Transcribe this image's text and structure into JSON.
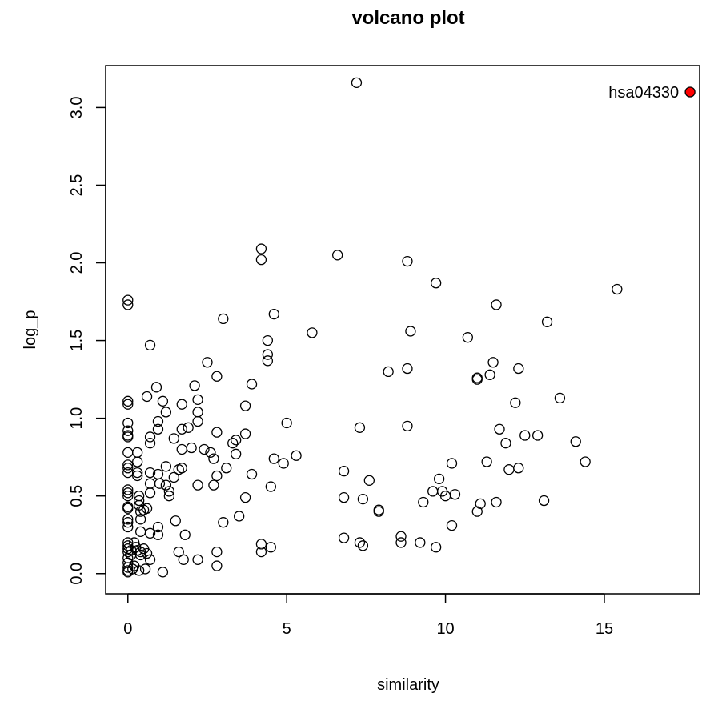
{
  "chart_data": {
    "type": "scatter",
    "title": "volcano plot",
    "xlabel": "similarity",
    "ylabel": "log_p",
    "xlim": [
      -0.7,
      18
    ],
    "ylim": [
      -0.13,
      3.27
    ],
    "xticks": [
      0,
      5,
      10,
      15
    ],
    "yticks": [
      0.0,
      0.5,
      1.0,
      1.5,
      2.0,
      2.5,
      3.0
    ],
    "x_tick_labels": [
      "0",
      "5",
      "10",
      "15"
    ],
    "y_tick_labels": [
      "0.0",
      "0.5",
      "1.0",
      "1.5",
      "2.0",
      "2.5",
      "3.0"
    ],
    "grid": false,
    "marker": "open-circle",
    "highlight": {
      "label": "hsa04330",
      "x": 17.7,
      "y": 3.1,
      "color": "#ff0000"
    },
    "points": [
      [
        0,
        1.76
      ],
      [
        0,
        1.73
      ],
      [
        0,
        1.11
      ],
      [
        0,
        1.09
      ],
      [
        0,
        0.97
      ],
      [
        0,
        0.92
      ],
      [
        0,
        0.89
      ],
      [
        0,
        0.88
      ],
      [
        0,
        0.78
      ],
      [
        0,
        0.7
      ],
      [
        0,
        0.68
      ],
      [
        0,
        0.65
      ],
      [
        0,
        0.54
      ],
      [
        0,
        0.52
      ],
      [
        0,
        0.5
      ],
      [
        0,
        0.43
      ],
      [
        0,
        0.42
      ],
      [
        0,
        0.35
      ],
      [
        0,
        0.33
      ],
      [
        0,
        0.3
      ],
      [
        0,
        0.2
      ],
      [
        0,
        0.18
      ],
      [
        0,
        0.16
      ],
      [
        0,
        0.14
      ],
      [
        0,
        0.1
      ],
      [
        0,
        0.07
      ],
      [
        0,
        0.04
      ],
      [
        0,
        0.02
      ],
      [
        0,
        0.01
      ],
      [
        0.1,
        0.15
      ],
      [
        0.1,
        0.12
      ],
      [
        0.15,
        0.03
      ],
      [
        0.2,
        0.2
      ],
      [
        0.2,
        0.05
      ],
      [
        0.25,
        0.17
      ],
      [
        0.3,
        0.78
      ],
      [
        0.3,
        0.72
      ],
      [
        0.3,
        0.65
      ],
      [
        0.3,
        0.63
      ],
      [
        0.3,
        0.15
      ],
      [
        0.35,
        0.5
      ],
      [
        0.35,
        0.47
      ],
      [
        0.35,
        0.44
      ],
      [
        0.4,
        0.4
      ],
      [
        0.4,
        0.35
      ],
      [
        0.4,
        0.27
      ],
      [
        0.4,
        0.14
      ],
      [
        0.4,
        0.12
      ],
      [
        0.35,
        0.02
      ],
      [
        0.5,
        0.41
      ],
      [
        0.5,
        0.16
      ],
      [
        0.55,
        0.03
      ],
      [
        0.6,
        0.42
      ],
      [
        0.6,
        0.13
      ],
      [
        0.6,
        1.14
      ],
      [
        0.7,
        1.47
      ],
      [
        0.7,
        0.88
      ],
      [
        0.7,
        0.84
      ],
      [
        0.7,
        0.65
      ],
      [
        0.7,
        0.58
      ],
      [
        0.7,
        0.52
      ],
      [
        0.7,
        0.26
      ],
      [
        0.7,
        0.09
      ],
      [
        0.9,
        1.2
      ],
      [
        0.95,
        0.98
      ],
      [
        0.95,
        0.93
      ],
      [
        0.95,
        0.64
      ],
      [
        0.95,
        0.3
      ],
      [
        0.95,
        0.25
      ],
      [
        1.0,
        0.58
      ],
      [
        1.1,
        1.11
      ],
      [
        1.1,
        0.01
      ],
      [
        1.2,
        1.04
      ],
      [
        1.2,
        0.69
      ],
      [
        1.2,
        0.57
      ],
      [
        1.3,
        0.53
      ],
      [
        1.3,
        0.5
      ],
      [
        1.45,
        0.87
      ],
      [
        1.45,
        0.62
      ],
      [
        1.5,
        0.34
      ],
      [
        1.6,
        0.67
      ],
      [
        1.6,
        0.14
      ],
      [
        1.7,
        1.09
      ],
      [
        1.7,
        0.93
      ],
      [
        1.7,
        0.8
      ],
      [
        1.7,
        0.68
      ],
      [
        1.75,
        0.09
      ],
      [
        1.8,
        0.25
      ],
      [
        1.9,
        0.94
      ],
      [
        2.0,
        0.81
      ],
      [
        2.1,
        1.21
      ],
      [
        2.2,
        1.12
      ],
      [
        2.2,
        1.04
      ],
      [
        2.2,
        0.98
      ],
      [
        2.2,
        0.57
      ],
      [
        2.2,
        0.09
      ],
      [
        2.4,
        0.8
      ],
      [
        2.5,
        1.36
      ],
      [
        2.6,
        0.78
      ],
      [
        2.7,
        0.74
      ],
      [
        2.7,
        0.57
      ],
      [
        2.8,
        1.27
      ],
      [
        2.8,
        0.91
      ],
      [
        2.8,
        0.63
      ],
      [
        2.8,
        0.14
      ],
      [
        2.8,
        0.05
      ],
      [
        3.0,
        1.64
      ],
      [
        3.0,
        0.33
      ],
      [
        3.1,
        0.68
      ],
      [
        3.3,
        0.84
      ],
      [
        3.4,
        0.86
      ],
      [
        3.4,
        0.77
      ],
      [
        3.5,
        0.37
      ],
      [
        3.7,
        1.08
      ],
      [
        3.7,
        0.9
      ],
      [
        3.7,
        0.49
      ],
      [
        3.9,
        1.22
      ],
      [
        3.9,
        0.64
      ],
      [
        4.2,
        2.09
      ],
      [
        4.2,
        2.02
      ],
      [
        4.2,
        0.19
      ],
      [
        4.2,
        0.14
      ],
      [
        4.4,
        1.5
      ],
      [
        4.4,
        1.41
      ],
      [
        4.4,
        1.37
      ],
      [
        4.5,
        0.56
      ],
      [
        4.5,
        0.17
      ],
      [
        4.6,
        1.67
      ],
      [
        4.6,
        0.74
      ],
      [
        4.9,
        0.71
      ],
      [
        5.0,
        0.97
      ],
      [
        5.3,
        0.76
      ],
      [
        5.8,
        1.55
      ],
      [
        6.6,
        2.05
      ],
      [
        6.8,
        0.66
      ],
      [
        6.8,
        0.49
      ],
      [
        6.8,
        0.23
      ],
      [
        7.2,
        3.16
      ],
      [
        7.3,
        0.94
      ],
      [
        7.3,
        0.2
      ],
      [
        7.4,
        0.18
      ],
      [
        7.4,
        0.48
      ],
      [
        7.6,
        0.6
      ],
      [
        7.9,
        0.41
      ],
      [
        7.9,
        0.4
      ],
      [
        8.2,
        1.3
      ],
      [
        8.6,
        0.2
      ],
      [
        8.6,
        0.24
      ],
      [
        8.8,
        2.01
      ],
      [
        8.8,
        1.32
      ],
      [
        8.8,
        0.95
      ],
      [
        8.9,
        1.56
      ],
      [
        9.2,
        0.2
      ],
      [
        9.3,
        0.46
      ],
      [
        9.6,
        0.53
      ],
      [
        9.7,
        1.87
      ],
      [
        9.7,
        0.17
      ],
      [
        9.8,
        0.61
      ],
      [
        9.9,
        0.53
      ],
      [
        10.0,
        0.5
      ],
      [
        10.2,
        0.71
      ],
      [
        10.2,
        0.31
      ],
      [
        10.3,
        0.51
      ],
      [
        10.7,
        1.52
      ],
      [
        11.0,
        1.25
      ],
      [
        11.0,
        1.26
      ],
      [
        11.0,
        0.4
      ],
      [
        11.1,
        0.45
      ],
      [
        11.3,
        0.72
      ],
      [
        11.4,
        1.28
      ],
      [
        11.5,
        1.36
      ],
      [
        11.6,
        1.73
      ],
      [
        11.6,
        0.46
      ],
      [
        11.7,
        0.93
      ],
      [
        11.9,
        0.84
      ],
      [
        12.0,
        0.67
      ],
      [
        12.2,
        1.1
      ],
      [
        12.3,
        1.32
      ],
      [
        12.3,
        0.68
      ],
      [
        12.5,
        0.89
      ],
      [
        12.9,
        0.89
      ],
      [
        13.1,
        0.47
      ],
      [
        13.2,
        1.62
      ],
      [
        13.6,
        1.13
      ],
      [
        14.1,
        0.85
      ],
      [
        14.4,
        0.72
      ],
      [
        15.4,
        1.83
      ]
    ]
  }
}
